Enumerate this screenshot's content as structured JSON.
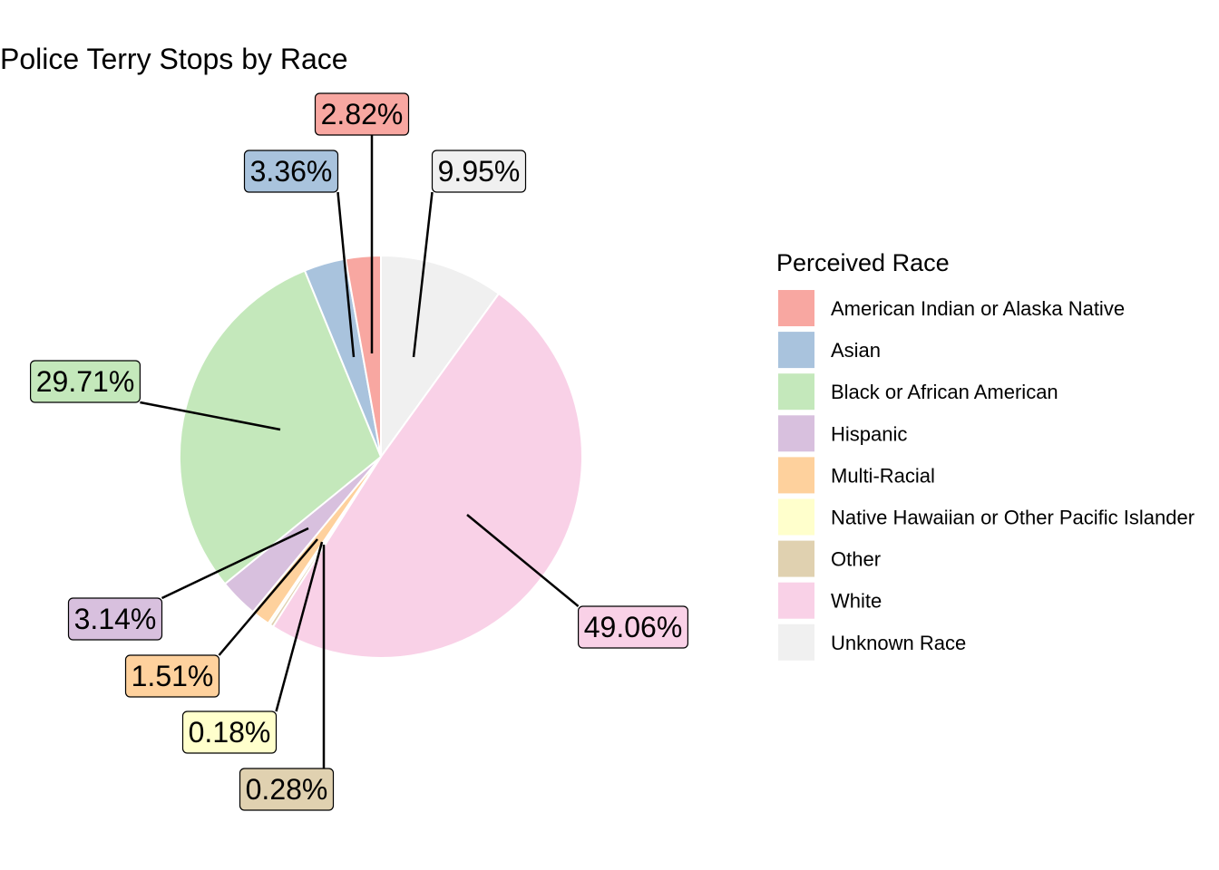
{
  "chart_data": {
    "type": "pie",
    "title": "Police Terry Stops by Race",
    "legend": {
      "title": "Perceived Race",
      "placement": "right"
    },
    "slices": [
      {
        "name": "Unknown Race",
        "value": 9.95,
        "label": "9.95%",
        "color": "#f0f0f0"
      },
      {
        "name": "White",
        "value": 49.06,
        "label": "49.06%",
        "color": "#f9d1e7"
      },
      {
        "name": "Other",
        "value": 0.28,
        "label": "0.28%",
        "color": "#e0d1b0"
      },
      {
        "name": "Native Hawaiian or Other Pacific Islander",
        "value": 0.18,
        "label": "0.18%",
        "color": "#ffffcc"
      },
      {
        "name": "Multi-Racial",
        "value": 1.51,
        "label": "1.51%",
        "color": "#fed19d"
      },
      {
        "name": "Hispanic",
        "value": 3.14,
        "label": "3.14%",
        "color": "#d8c0de"
      },
      {
        "name": "Black or African American",
        "value": 29.71,
        "label": "29.71%",
        "color": "#c4e8bb"
      },
      {
        "name": "Asian",
        "value": 3.36,
        "label": "3.36%",
        "color": "#a9c3dd"
      },
      {
        "name": "American Indian or Alaska Native",
        "value": 2.82,
        "label": "2.82%",
        "color": "#f8a7a1"
      }
    ],
    "legend_order": [
      "American Indian or Alaska Native",
      "Asian",
      "Black or African American",
      "Hispanic",
      "Multi-Racial",
      "Native Hawaiian or Other Pacific Islander",
      "Other",
      "White",
      "Unknown Race"
    ]
  }
}
